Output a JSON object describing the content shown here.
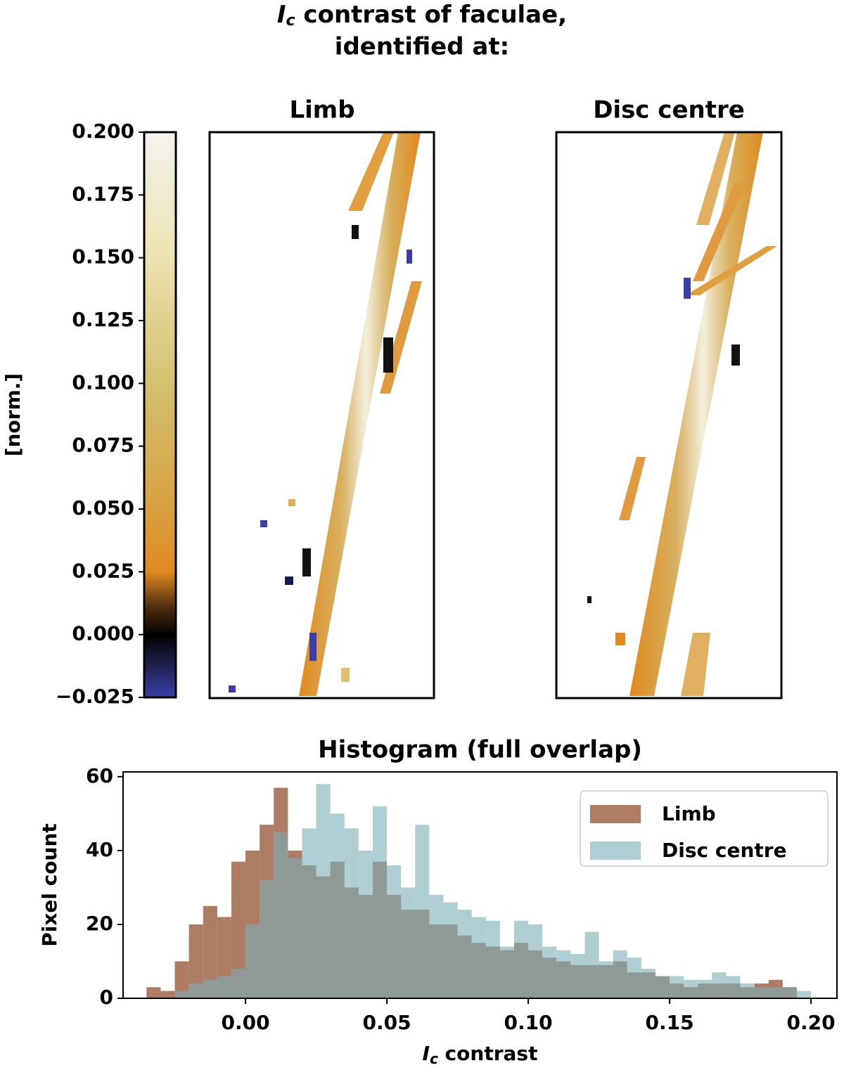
{
  "figure": {
    "title": {
      "symbol": "I",
      "subscript": "c",
      "line1": " contrast of faculae,",
      "line2": "identified at:"
    },
    "colorbar": {
      "label": "[norm.]",
      "lim": [
        -0.025,
        0.2
      ],
      "ticks": [
        {
          "value": 0.2,
          "label": "0.200"
        },
        {
          "value": 0.175,
          "label": "0.175"
        },
        {
          "value": 0.15,
          "label": "0.150"
        },
        {
          "value": 0.125,
          "label": "0.125"
        },
        {
          "value": 0.1,
          "label": "0.100"
        },
        {
          "value": 0.075,
          "label": "0.075"
        },
        {
          "value": 0.05,
          "label": "0.050"
        },
        {
          "value": 0.025,
          "label": "0.025"
        },
        {
          "value": 0,
          "label": "0.000"
        },
        {
          "value": -0.025,
          "label": "−0.025"
        }
      ],
      "stops": [
        {
          "value": -0.025,
          "color": "#3a40a8"
        },
        {
          "value": -0.01,
          "color": "#1a1a40"
        },
        {
          "value": 0,
          "color": "#000000"
        },
        {
          "value": 0.012,
          "color": "#5a3210"
        },
        {
          "value": 0.025,
          "color": "#e08a20"
        },
        {
          "value": 0.05,
          "color": "#d8a040"
        },
        {
          "value": 0.1,
          "color": "#d4c070"
        },
        {
          "value": 0.15,
          "color": "#ece2b0"
        },
        {
          "value": 0.2,
          "color": "#f5f3ee"
        }
      ]
    },
    "panels": [
      "Limb",
      "Disc centre"
    ]
  },
  "chart_data": {
    "type": "histogram",
    "title": "Histogram (full overlap)",
    "xlabel": {
      "symbol": "I",
      "subscript": "c",
      "text": " contrast"
    },
    "ylabel": "Pixel count",
    "bins": [
      -0.035,
      -0.03,
      -0.025,
      -0.02,
      -0.015,
      -0.01,
      -0.005,
      0,
      0.005,
      0.01,
      0.015,
      0.02,
      0.025,
      0.03,
      0.035,
      0.04,
      0.045,
      0.05,
      0.055,
      0.06,
      0.065,
      0.07,
      0.075,
      0.08,
      0.085,
      0.09,
      0.095,
      0.1,
      0.105,
      0.11,
      0.115,
      0.12,
      0.125,
      0.13,
      0.135,
      0.14,
      0.145,
      0.15,
      0.155,
      0.16,
      0.165,
      0.17,
      0.175,
      0.18,
      0.185,
      0.19,
      0.195,
      0.2
    ],
    "series": [
      {
        "name": "Limb",
        "color": "#93502f",
        "values": [
          3,
          2,
          10,
          20,
          25,
          22,
          37,
          40,
          47,
          57,
          40,
          36,
          33,
          37,
          30,
          28,
          37,
          28,
          24,
          24,
          20,
          20,
          17,
          15,
          14,
          13,
          15,
          13,
          11,
          10,
          9,
          9,
          9,
          10,
          7,
          7,
          6,
          4,
          3,
          4,
          4,
          4,
          3,
          4,
          5,
          3,
          0
        ]
      },
      {
        "name": "Disc centre",
        "color": "#7aaeb8",
        "values": [
          0,
          0,
          2,
          4,
          5,
          6,
          8,
          20,
          32,
          45,
          38,
          46,
          58,
          50,
          46,
          40,
          52,
          36,
          30,
          47,
          28,
          26,
          24,
          22,
          21,
          14,
          21,
          20,
          14,
          13,
          12,
          18,
          10,
          13,
          11,
          8,
          6,
          6,
          5,
          5,
          7,
          6,
          4,
          3,
          3,
          3,
          2
        ]
      }
    ],
    "xlim": [
      -0.0433,
      0.2092
    ],
    "ylim": [
      0,
      61.3
    ],
    "xticks": [
      {
        "value": 0,
        "label": "0.00"
      },
      {
        "value": 0.05,
        "label": "0.05"
      },
      {
        "value": 0.1,
        "label": "0.10"
      },
      {
        "value": 0.15,
        "label": "0.15"
      },
      {
        "value": 0.2,
        "label": "0.20"
      }
    ],
    "yticks": [
      0,
      20,
      40,
      60
    ],
    "legend": "upper right"
  }
}
